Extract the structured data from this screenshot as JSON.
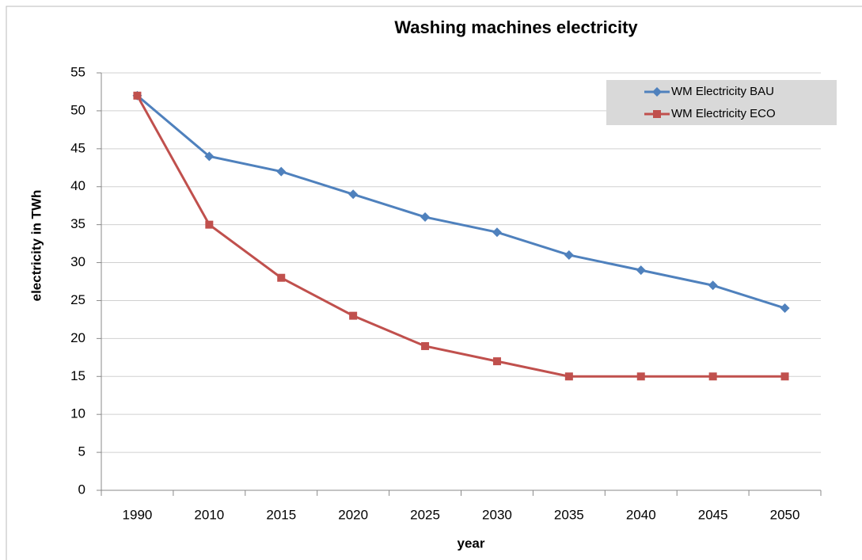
{
  "chart_data": {
    "type": "line",
    "title": "Washing machines electricity",
    "xlabel": "year",
    "ylabel": "electricity in TWh",
    "categories": [
      "1990",
      "2010",
      "2015",
      "2020",
      "2025",
      "2030",
      "2035",
      "2040",
      "2045",
      "2050"
    ],
    "series": [
      {
        "name": "WM Electricity BAU",
        "color": "#4f81bd",
        "marker": "diamond",
        "values": [
          52,
          44,
          42,
          39,
          36,
          34,
          31,
          29,
          27,
          24
        ]
      },
      {
        "name": "WM Electricity ECO",
        "color": "#c0504d",
        "marker": "square",
        "values": [
          52,
          35,
          28,
          23,
          19,
          17,
          15,
          15,
          15,
          15
        ]
      }
    ],
    "ylim": [
      0,
      55
    ],
    "yticks": [
      0,
      5,
      10,
      15,
      20,
      25,
      30,
      35,
      40,
      45,
      50,
      55
    ],
    "grid": true,
    "legend": "upper right"
  }
}
